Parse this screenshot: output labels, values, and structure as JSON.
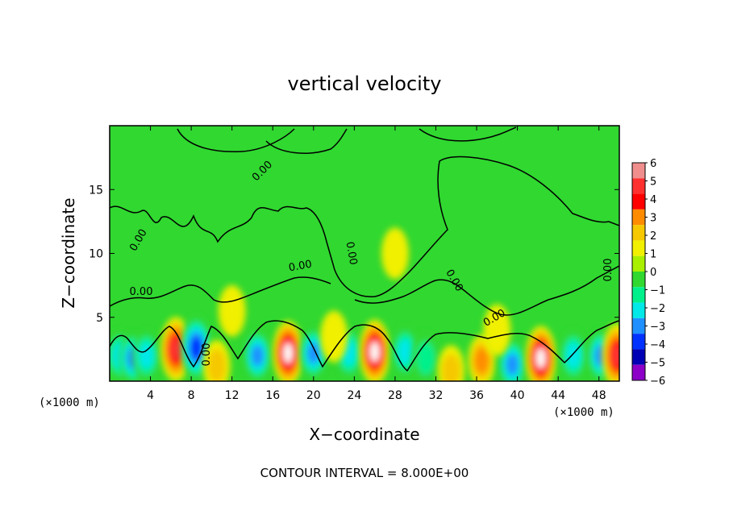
{
  "chart_data": {
    "type": "heatmap",
    "title": "vertical velocity",
    "xlabel": "X−coordinate",
    "ylabel": "Z−coordinate",
    "x_unit_left": "(×1000 m)",
    "x_unit_right": "(×1000 m)",
    "xlim": [
      0,
      50
    ],
    "ylim": [
      0,
      20
    ],
    "x_ticks": [
      4,
      8,
      12,
      16,
      20,
      24,
      28,
      32,
      36,
      40,
      44,
      48
    ],
    "y_ticks": [
      5,
      10,
      15
    ],
    "colorbar": {
      "levels": [
        6,
        5,
        4,
        3,
        2,
        1,
        0,
        -1,
        -2,
        -3,
        -4,
        -5,
        -6
      ],
      "level_labels": [
        "6",
        "5",
        "4",
        "3",
        "2",
        "1",
        "0",
        "−1",
        "−2",
        "−3",
        "−4",
        "−5",
        "−6"
      ],
      "colors": [
        "#f08e8e",
        "#ff3030",
        "#ff0000",
        "#ff8c00",
        "#f5c800",
        "#f0f000",
        "#a8f000",
        "#30d830",
        "#00f08c",
        "#00e8e8",
        "#1e90ff",
        "#0032ff",
        "#0000b4",
        "#8c00c8"
      ]
    },
    "contour_labels": [
      "0.00",
      "0.00",
      "0.00",
      "0.00",
      "0.00",
      "0.00",
      "0.00",
      "0.00",
      "0.00"
    ],
    "contour_interval_text": "CONTOUR INTERVAL = 8.000E+00",
    "cells": [
      {
        "x": 1.0,
        "z": 2.0,
        "v": -3
      },
      {
        "x": 2.3,
        "z": 1.8,
        "v": -4
      },
      {
        "x": 3.6,
        "z": 2.0,
        "v": -3
      },
      {
        "x": 6.5,
        "z": 2.5,
        "v": 5
      },
      {
        "x": 8.5,
        "z": 2.6,
        "v": -5
      },
      {
        "x": 10.5,
        "z": 1.2,
        "v": 2
      },
      {
        "x": 14.5,
        "z": 2.0,
        "v": -4
      },
      {
        "x": 17.5,
        "z": 2.2,
        "v": 6
      },
      {
        "x": 20.0,
        "z": 2.2,
        "v": -4
      },
      {
        "x": 23.5,
        "z": 2.2,
        "v": -3
      },
      {
        "x": 26.0,
        "z": 2.3,
        "v": 6
      },
      {
        "x": 29.0,
        "z": 2.3,
        "v": -3
      },
      {
        "x": 31.0,
        "z": 1.8,
        "v": -2
      },
      {
        "x": 33.5,
        "z": 0.8,
        "v": 2
      },
      {
        "x": 36.5,
        "z": 1.6,
        "v": 3
      },
      {
        "x": 39.5,
        "z": 1.3,
        "v": -4
      },
      {
        "x": 42.3,
        "z": 1.8,
        "v": 6
      },
      {
        "x": 45.5,
        "z": 2.0,
        "v": -3
      },
      {
        "x": 48.2,
        "z": 2.0,
        "v": -4
      },
      {
        "x": 49.8,
        "z": 2.0,
        "v": 5
      },
      {
        "x": 22.0,
        "z": 3.5,
        "v": 1
      },
      {
        "x": 12.0,
        "z": 5.5,
        "v": 1
      },
      {
        "x": 28.0,
        "z": 10.0,
        "v": 1
      },
      {
        "x": 38.0,
        "z": 4.0,
        "v": 1
      }
    ]
  }
}
